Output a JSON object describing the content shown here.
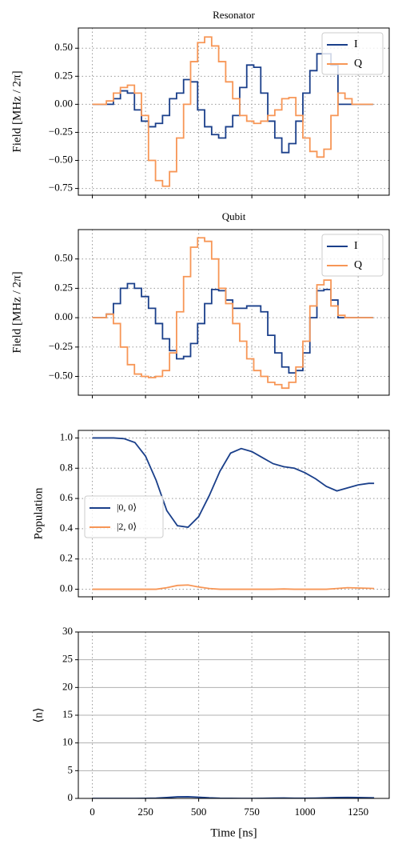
{
  "chart_data": [
    {
      "type": "line",
      "title": "Resonator",
      "ylabel": "Field [MHz / 2π]",
      "drawstyle": "steps-post",
      "x": [
        0,
        33,
        66,
        99,
        132,
        165,
        198,
        231,
        264,
        297,
        330,
        363,
        396,
        429,
        462,
        495,
        528,
        561,
        594,
        627,
        660,
        693,
        726,
        759,
        792,
        825,
        858,
        891,
        924,
        957,
        990,
        1023,
        1056,
        1089,
        1122,
        1155,
        1188,
        1221,
        1254,
        1287,
        1320
      ],
      "series": [
        {
          "name": "I",
          "color": "#1a3f8a",
          "values": [
            0,
            0,
            0,
            0.05,
            0.12,
            0.1,
            -0.05,
            -0.15,
            -0.2,
            -0.17,
            -0.1,
            0.05,
            0.1,
            0.22,
            0.2,
            -0.05,
            -0.2,
            -0.27,
            -0.3,
            -0.2,
            -0.1,
            0.15,
            0.35,
            0.33,
            0.1,
            -0.15,
            -0.3,
            -0.43,
            -0.35,
            -0.15,
            0.1,
            0.3,
            0.45,
            0.45,
            0.35,
            0,
            0,
            0,
            0,
            0,
            0
          ]
        },
        {
          "name": "Q",
          "color": "#f79656",
          "values": [
            0,
            0,
            0.03,
            0.1,
            0.15,
            0.17,
            0.1,
            -0.1,
            -0.5,
            -0.68,
            -0.73,
            -0.6,
            -0.3,
            0,
            0.38,
            0.55,
            0.6,
            0.52,
            0.38,
            0.2,
            0.05,
            -0.1,
            -0.15,
            -0.17,
            -0.15,
            -0.1,
            -0.05,
            0.05,
            0.06,
            -0.1,
            -0.3,
            -0.42,
            -0.47,
            -0.4,
            -0.1,
            0.1,
            0.05,
            0,
            0,
            0,
            0
          ]
        }
      ],
      "xlim": [
        -66,
        1396
      ],
      "ylim": [
        -0.81,
        0.68
      ],
      "xticks": [
        0,
        250,
        500,
        750,
        1000,
        1250
      ],
      "show_xticklabels": false,
      "yticks": [
        {
          "value": 0.5,
          "label": "0.50"
        },
        {
          "value": 0.25,
          "label": "0.25"
        },
        {
          "value": 0,
          "label": "0.00"
        },
        {
          "value": -0.25,
          "label": "−0.25"
        },
        {
          "value": -0.5,
          "label": "−0.50"
        },
        {
          "value": -0.75,
          "label": "−0.75"
        }
      ],
      "grid": {
        "x": "dotted",
        "y": "dotted"
      },
      "legend": "upper-right"
    },
    {
      "type": "line",
      "title": "Qubit",
      "ylabel": "Field [MHz / 2π]",
      "drawstyle": "steps-post",
      "x": [
        0,
        33,
        66,
        99,
        132,
        165,
        198,
        231,
        264,
        297,
        330,
        363,
        396,
        429,
        462,
        495,
        528,
        561,
        594,
        627,
        660,
        693,
        726,
        759,
        792,
        825,
        858,
        891,
        924,
        957,
        990,
        1023,
        1056,
        1089,
        1122,
        1155,
        1188,
        1221,
        1254,
        1287,
        1320
      ],
      "series": [
        {
          "name": "I",
          "color": "#1a3f8a",
          "values": [
            0,
            0,
            0.03,
            0.12,
            0.25,
            0.29,
            0.25,
            0.18,
            0.08,
            -0.05,
            -0.18,
            -0.28,
            -0.35,
            -0.33,
            -0.22,
            -0.05,
            0.12,
            0.24,
            0.23,
            0.15,
            0.08,
            0.08,
            0.1,
            0.1,
            0.05,
            -0.15,
            -0.3,
            -0.42,
            -0.47,
            -0.45,
            -0.3,
            0,
            0.23,
            0.24,
            0.15,
            0,
            0,
            0,
            0,
            0,
            0
          ]
        },
        {
          "name": "Q",
          "color": "#f79656",
          "values": [
            0,
            0,
            0.03,
            -0.05,
            -0.25,
            -0.4,
            -0.48,
            -0.5,
            -0.51,
            -0.5,
            -0.45,
            -0.3,
            0.05,
            0.35,
            0.6,
            0.68,
            0.65,
            0.5,
            0.25,
            0.12,
            -0.05,
            -0.2,
            -0.35,
            -0.45,
            -0.5,
            -0.55,
            -0.57,
            -0.6,
            -0.55,
            -0.42,
            -0.2,
            0.1,
            0.28,
            0.32,
            0.1,
            0.02,
            0,
            0,
            0,
            0,
            0
          ]
        }
      ],
      "xlim": [
        -66,
        1396
      ],
      "ylim": [
        -0.66,
        0.75
      ],
      "xticks": [
        0,
        250,
        500,
        750,
        1000,
        1250
      ],
      "show_xticklabels": false,
      "yticks": [
        {
          "value": 0.5,
          "label": "0.50"
        },
        {
          "value": 0.25,
          "label": "0.25"
        },
        {
          "value": 0,
          "label": "0.00"
        },
        {
          "value": -0.25,
          "label": "−0.25"
        },
        {
          "value": -0.5,
          "label": "−0.50"
        }
      ],
      "grid": {
        "x": "dotted",
        "y": "dotted"
      },
      "legend": "upper-right"
    },
    {
      "type": "line",
      "ylabel": "Population",
      "drawstyle": "default",
      "x": [
        0,
        50,
        100,
        150,
        200,
        250,
        300,
        350,
        400,
        450,
        500,
        550,
        600,
        650,
        700,
        750,
        800,
        850,
        900,
        950,
        1000,
        1050,
        1100,
        1150,
        1200,
        1250,
        1300,
        1325
      ],
      "series": [
        {
          "name": "|0, 0⟩",
          "color": "#1a3f8a",
          "values": [
            1,
            1,
            1,
            0.995,
            0.97,
            0.88,
            0.72,
            0.52,
            0.42,
            0.41,
            0.48,
            0.62,
            0.78,
            0.9,
            0.93,
            0.91,
            0.87,
            0.83,
            0.81,
            0.8,
            0.77,
            0.73,
            0.68,
            0.65,
            0.67,
            0.69,
            0.7,
            0.7
          ]
        },
        {
          "name": "|2, 0⟩",
          "color": "#f79656",
          "values": [
            0,
            0,
            0,
            0,
            0,
            0,
            0,
            0.01,
            0.025,
            0.028,
            0.015,
            0.005,
            0,
            0,
            0,
            0,
            0,
            0,
            0.002,
            0,
            0,
            0,
            0,
            0.005,
            0.01,
            0.008,
            0.006,
            0.005
          ]
        }
      ],
      "xlim": [
        -66,
        1396
      ],
      "ylim": [
        -0.05,
        1.05
      ],
      "xticks": [
        0,
        250,
        500,
        750,
        1000,
        1250
      ],
      "show_xticklabels": false,
      "yticks": [
        {
          "value": 0,
          "label": "0.0"
        },
        {
          "value": 0.2,
          "label": "0.2"
        },
        {
          "value": 0.4,
          "label": "0.4"
        },
        {
          "value": 0.6,
          "label": "0.6"
        },
        {
          "value": 0.8,
          "label": "0.8"
        },
        {
          "value": 1,
          "label": "1.0"
        }
      ],
      "grid": {
        "x": "dotted",
        "y": "dotted"
      },
      "legend": "center-left"
    },
    {
      "type": "line",
      "ylabel": "⟨n⟩",
      "xlabel": "Time [ns]",
      "drawstyle": "default",
      "x": [
        0,
        50,
        100,
        150,
        200,
        250,
        300,
        350,
        400,
        450,
        500,
        550,
        600,
        650,
        700,
        750,
        800,
        850,
        900,
        950,
        1000,
        1050,
        1100,
        1150,
        1200,
        1250,
        1300,
        1325
      ],
      "series": [
        {
          "color": "#1a3f8a",
          "values": [
            0,
            0,
            0,
            0,
            0,
            0.01,
            0.05,
            0.15,
            0.28,
            0.3,
            0.22,
            0.1,
            0.03,
            0.01,
            0,
            0,
            0.02,
            0.05,
            0.06,
            0.04,
            0.03,
            0.05,
            0.1,
            0.15,
            0.17,
            0.15,
            0.12,
            0.1
          ]
        }
      ],
      "xlim": [
        -66,
        1396
      ],
      "ylim": [
        0,
        30
      ],
      "xticks": [
        0,
        250,
        500,
        750,
        1000,
        1250
      ],
      "show_xticklabels": true,
      "yticks": [
        0,
        5,
        10,
        15,
        20,
        25,
        30
      ],
      "grid": {
        "x": "dotted",
        "y": "solid"
      }
    }
  ]
}
